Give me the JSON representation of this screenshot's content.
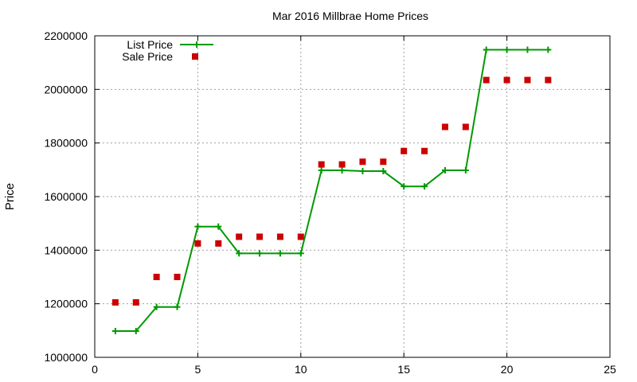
{
  "chart_data": {
    "type": "line",
    "title": "Mar 2016 Millbrae Home Prices",
    "xlabel": "",
    "ylabel": "Price",
    "xlim": [
      0,
      25
    ],
    "ylim": [
      1000000,
      2200000
    ],
    "x_ticks": [
      0,
      5,
      10,
      15,
      20,
      25
    ],
    "y_ticks": [
      1000000,
      1200000,
      1400000,
      1600000,
      1800000,
      2000000,
      2200000
    ],
    "grid": true,
    "legend_position": "top-left",
    "x": [
      1,
      2,
      3,
      4,
      5,
      6,
      7,
      8,
      9,
      10,
      11,
      12,
      13,
      14,
      15,
      16,
      17,
      18,
      19,
      20,
      21,
      22
    ],
    "series": [
      {
        "name": "List Price",
        "style": "line-with-plus-markers",
        "color": "#009900",
        "values": [
          1098000,
          1098000,
          1188000,
          1188000,
          1488000,
          1488000,
          1388000,
          1388000,
          1388000,
          1388000,
          1698000,
          1698000,
          1695000,
          1695000,
          1638000,
          1638000,
          1698000,
          1698000,
          2148000,
          2148000,
          2148000,
          2148000
        ]
      },
      {
        "name": "Sale Price",
        "style": "square-markers",
        "color": "#cc0000",
        "values": [
          1205000,
          1205000,
          1300000,
          1300000,
          1425000,
          1425000,
          1450000,
          1450000,
          1450000,
          1450000,
          1720000,
          1720000,
          1730000,
          1730000,
          1770000,
          1770000,
          1860000,
          1860000,
          2035000,
          2035000,
          2035000,
          2035000
        ]
      }
    ]
  }
}
